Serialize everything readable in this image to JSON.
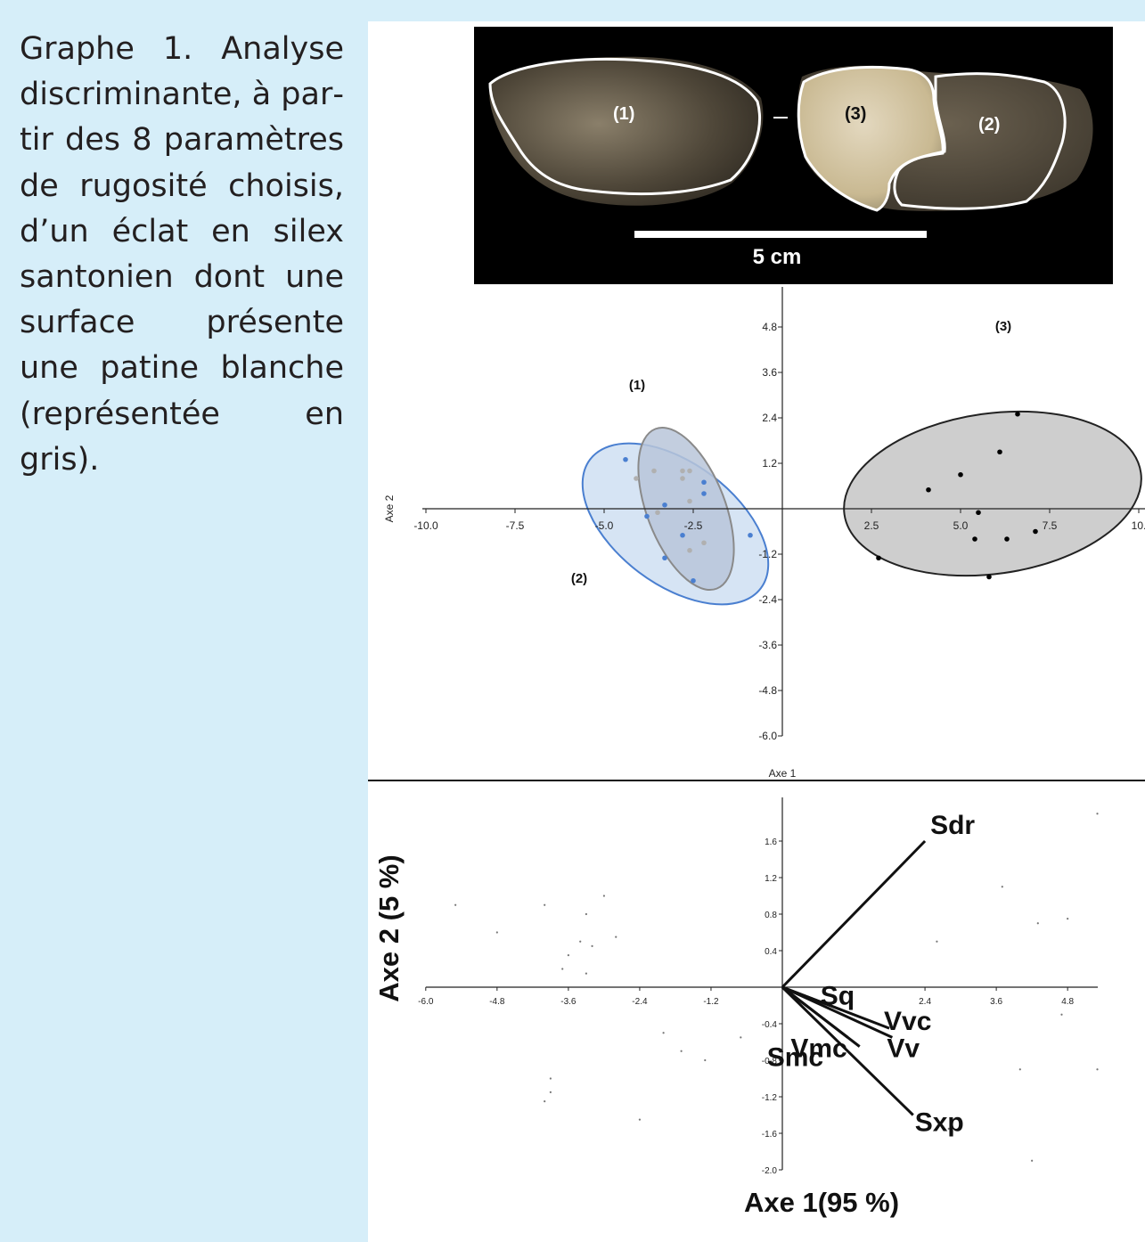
{
  "caption": "Graphe 1. Analyse discriminante, à par­tir des 8 paramètres de rugosité choisis, d’un éclat en silex santonien dont une surface présente une patine blanche (représentée en gris).",
  "colors": {
    "background": "#d6eef9",
    "group_blue": "#4a7fd0",
    "group_blue_fill": "#cfdff2",
    "group_gray": "#b0b0b0",
    "group3_fill": "#c6c6c6",
    "vector_color": "#111111"
  },
  "photo": {
    "region_labels": [
      "(1)",
      "(3)",
      "(2)"
    ],
    "scale_label": "5 cm"
  },
  "chart_data": [
    {
      "type": "scatter",
      "title": "",
      "xlabel": "Axe 1",
      "ylabel": "Axe 2",
      "x_ticks": [
        "-10.0",
        "-7.5",
        "-5.0",
        "-2.5",
        "2.5",
        "5.0",
        "7.5",
        "10."
      ],
      "y_ticks": [
        "4.8",
        "3.6",
        "2.4",
        "1.2",
        "-1.2",
        "-2.4",
        "-3.6",
        "-4.8",
        "-6.0"
      ],
      "xlim": [
        -10.0,
        10.0
      ],
      "ylim": [
        -6.0,
        5.5
      ],
      "grid": false,
      "group_labels": [
        "(1)",
        "(2)",
        "(3)"
      ],
      "series": [
        {
          "name": "(1)",
          "color": "#b0b0b0",
          "points": [
            [
              -3.6,
              1.0
            ],
            [
              -2.8,
              1.0
            ],
            [
              -2.6,
              1.0
            ],
            [
              -4.1,
              0.8
            ],
            [
              -2.8,
              0.8
            ],
            [
              -2.6,
              0.2
            ],
            [
              -3.5,
              -0.1
            ],
            [
              -2.2,
              -0.9
            ],
            [
              -2.6,
              -1.1
            ]
          ]
        },
        {
          "name": "(2)",
          "color": "#4a7fd0",
          "points": [
            [
              -4.4,
              1.3
            ],
            [
              -2.2,
              0.7
            ],
            [
              -2.2,
              0.4
            ],
            [
              -3.3,
              0.1
            ],
            [
              -3.8,
              -0.2
            ],
            [
              -2.8,
              -0.7
            ],
            [
              -0.9,
              -0.7
            ],
            [
              -3.3,
              -1.3
            ],
            [
              -2.5,
              -1.9
            ]
          ]
        },
        {
          "name": "(3)",
          "color": "#000000",
          "points": [
            [
              6.6,
              2.5
            ],
            [
              6.1,
              1.5
            ],
            [
              5.0,
              0.9
            ],
            [
              4.1,
              0.5
            ],
            [
              5.5,
              -0.1
            ],
            [
              7.1,
              -0.6
            ],
            [
              5.4,
              -0.8
            ],
            [
              6.3,
              -0.8
            ],
            [
              2.7,
              -1.3
            ],
            [
              5.8,
              -1.8
            ]
          ]
        }
      ],
      "ellipses": [
        {
          "group": "(2)",
          "center": [
            -3.0,
            -0.4
          ],
          "rx": 6.0,
          "ry": 3.4,
          "rotation_deg": 37,
          "fill": "#cfdff2",
          "stroke": "#4a7fd0"
        },
        {
          "group": "(1)",
          "center": [
            -2.7,
            0.0
          ],
          "rx": 2.2,
          "ry": 4.8,
          "rotation_deg": -21,
          "fill": "#b8c5d9",
          "stroke": "#8a8a8a"
        },
        {
          "group": "(3)",
          "center": [
            5.9,
            0.4
          ],
          "rx": 8.4,
          "ry": 4.5,
          "rotation_deg": -8,
          "fill": "#c6c6c6",
          "stroke": "#222222"
        }
      ]
    },
    {
      "type": "scatter",
      "title": "",
      "xlabel": "Axe 1(95 %)",
      "ylabel": "Axe 2 (5 %)",
      "x_ticks": [
        "-6.0",
        "-4.8",
        "-3.6",
        "-2.4",
        "-1.2",
        "2.4",
        "3.6",
        "4.8"
      ],
      "y_ticks": [
        "1.6",
        "1.2",
        "0.8",
        "0.4",
        "-0.4",
        "-0.8",
        "-1.2",
        "-1.6",
        "-2.0"
      ],
      "xlim": [
        -6.0,
        5.3
      ],
      "ylim": [
        -2.0,
        2.0
      ],
      "grid": false,
      "points": [
        [
          -5.5,
          0.9
        ],
        [
          -4.8,
          0.6
        ],
        [
          -4.0,
          0.9
        ],
        [
          -3.4,
          0.5
        ],
        [
          -3.0,
          1.0
        ],
        [
          -2.8,
          0.55
        ],
        [
          -3.3,
          0.8
        ],
        [
          -3.2,
          0.45
        ],
        [
          -3.6,
          0.35
        ],
        [
          -3.7,
          0.2
        ],
        [
          -3.3,
          0.15
        ],
        [
          -2.0,
          -0.5
        ],
        [
          -1.7,
          -0.7
        ],
        [
          -1.3,
          -0.8
        ],
        [
          -3.9,
          -1.0
        ],
        [
          -3.9,
          -1.15
        ],
        [
          -4.0,
          -1.25
        ],
        [
          -2.4,
          -1.45
        ],
        [
          -0.7,
          -0.55
        ],
        [
          2.6,
          0.5
        ],
        [
          3.7,
          1.1
        ],
        [
          4.3,
          0.7
        ],
        [
          4.8,
          0.75
        ],
        [
          4.7,
          -0.3
        ],
        [
          4.0,
          -0.9
        ],
        [
          5.3,
          -0.9
        ],
        [
          2.8,
          -1.55
        ],
        [
          4.2,
          -1.9
        ],
        [
          5.3,
          1.9
        ]
      ],
      "vectors": [
        {
          "name": "Sdr",
          "x": 2.4,
          "y": 1.6
        },
        {
          "name": "Sq",
          "x": 1.0,
          "y": -0.25
        },
        {
          "name": "Vvc",
          "x": 1.8,
          "y": -0.45
        },
        {
          "name": "Vv",
          "x": 1.85,
          "y": -0.55
        },
        {
          "name": "Vmc",
          "x": 1.1,
          "y": -0.55
        },
        {
          "name": "Smc",
          "x": 1.3,
          "y": -0.65
        },
        {
          "name": "Sxp",
          "x": 2.2,
          "y": -1.4
        }
      ]
    }
  ]
}
